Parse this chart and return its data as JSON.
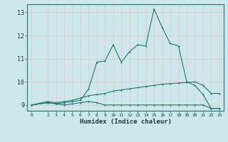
{
  "xlabel": "Humidex (Indice chaleur)",
  "background_color": "#cce8ec",
  "grid_color": "#e8c8c8",
  "line_color": "#1a7a6e",
  "xlim": [
    -0.5,
    23.5
  ],
  "ylim": [
    8.75,
    13.35
  ],
  "xticks": [
    0,
    2,
    3,
    4,
    5,
    6,
    7,
    8,
    9,
    10,
    11,
    12,
    13,
    14,
    15,
    16,
    17,
    18,
    19,
    20,
    21,
    22,
    23
  ],
  "yticks": [
    9,
    10,
    11,
    12,
    13
  ],
  "line1_x": [
    0,
    2,
    3,
    4,
    5,
    6,
    7,
    8,
    9,
    10,
    11,
    12,
    13,
    14,
    15,
    16,
    17,
    18,
    19,
    20,
    21,
    22,
    23
  ],
  "line1_y": [
    9.0,
    9.1,
    9.05,
    9.0,
    9.05,
    9.1,
    9.15,
    9.1,
    9.0,
    9.0,
    9.0,
    9.0,
    9.0,
    9.0,
    9.0,
    9.0,
    9.0,
    9.0,
    9.0,
    9.0,
    9.0,
    8.85,
    8.85
  ],
  "line2_x": [
    0,
    2,
    3,
    4,
    5,
    6,
    7,
    8,
    9,
    10,
    11,
    12,
    13,
    14,
    15,
    16,
    17,
    18,
    19,
    20,
    21,
    22,
    23
  ],
  "line2_y": [
    9.0,
    9.15,
    9.1,
    9.15,
    9.2,
    9.3,
    9.4,
    9.45,
    9.5,
    9.6,
    9.65,
    9.7,
    9.75,
    9.8,
    9.85,
    9.9,
    9.92,
    9.95,
    9.97,
    10.0,
    9.85,
    9.5,
    9.5
  ],
  "line3_x": [
    0,
    2,
    3,
    4,
    5,
    6,
    7,
    8,
    9,
    10,
    11,
    12,
    13,
    14,
    15,
    16,
    17,
    18,
    19,
    20,
    21,
    22,
    23
  ],
  "line3_y": [
    9.0,
    9.1,
    9.05,
    9.1,
    9.15,
    9.2,
    9.7,
    10.85,
    10.9,
    11.6,
    10.85,
    11.3,
    11.6,
    11.55,
    13.15,
    12.35,
    11.65,
    11.55,
    10.0,
    9.85,
    9.45,
    8.85,
    8.85
  ]
}
